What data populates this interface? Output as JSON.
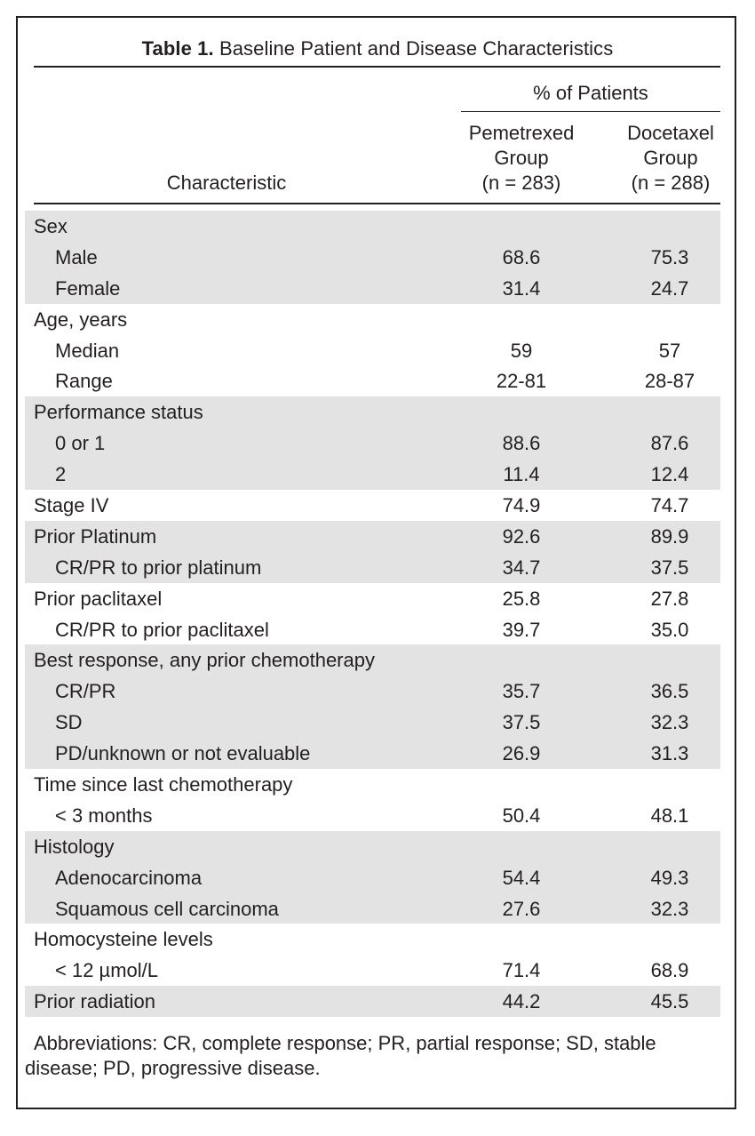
{
  "table": {
    "caption_label": "Table 1.",
    "caption_text": "Baseline Patient and Disease Characteristics",
    "header": {
      "characteristic": "Characteristic",
      "pct_of_patients": "% of Patients",
      "col1": [
        "Pemetrexed",
        "Group",
        "(n = 283)"
      ],
      "col2": [
        "Docetaxel",
        "Group",
        "(n = 288)"
      ]
    },
    "rows": [
      {
        "label": "Sex",
        "v1": "",
        "v2": "",
        "indent": false,
        "shade": true
      },
      {
        "label": "Male",
        "v1": "68.6",
        "v2": "75.3",
        "indent": true,
        "shade": true
      },
      {
        "label": "Female",
        "v1": "31.4",
        "v2": "24.7",
        "indent": true,
        "shade": true
      },
      {
        "label": "Age, years",
        "v1": "",
        "v2": "",
        "indent": false,
        "shade": false
      },
      {
        "label": "Median",
        "v1": "59",
        "v2": "57",
        "indent": true,
        "shade": false
      },
      {
        "label": "Range",
        "v1": "22-81",
        "v2": "28-87",
        "indent": true,
        "shade": false
      },
      {
        "label": "Performance status",
        "v1": "",
        "v2": "",
        "indent": false,
        "shade": true
      },
      {
        "label": "0 or 1",
        "v1": "88.6",
        "v2": "87.6",
        "indent": true,
        "shade": true
      },
      {
        "label": "2",
        "v1": "11.4",
        "v2": "12.4",
        "indent": true,
        "shade": true
      },
      {
        "label": "Stage IV",
        "v1": "74.9",
        "v2": "74.7",
        "indent": false,
        "shade": false
      },
      {
        "label": "Prior Platinum",
        "v1": "92.6",
        "v2": "89.9",
        "indent": false,
        "shade": true
      },
      {
        "label": "CR/PR to prior platinum",
        "v1": "34.7",
        "v2": "37.5",
        "indent": true,
        "shade": true
      },
      {
        "label": "Prior paclitaxel",
        "v1": "25.8",
        "v2": "27.8",
        "indent": false,
        "shade": false
      },
      {
        "label": "CR/PR to prior paclitaxel",
        "v1": "39.7",
        "v2": "35.0",
        "indent": true,
        "shade": false
      },
      {
        "label": "Best response, any prior chemotherapy",
        "v1": "",
        "v2": "",
        "indent": false,
        "shade": true
      },
      {
        "label": "CR/PR",
        "v1": "35.7",
        "v2": "36.5",
        "indent": true,
        "shade": true
      },
      {
        "label": "SD",
        "v1": "37.5",
        "v2": "32.3",
        "indent": true,
        "shade": true
      },
      {
        "label": "PD/unknown or not evaluable",
        "v1": "26.9",
        "v2": "31.3",
        "indent": true,
        "shade": true
      },
      {
        "label": "Time since last chemotherapy",
        "v1": "",
        "v2": "",
        "indent": false,
        "shade": false
      },
      {
        "label": "< 3 months",
        "v1": "50.4",
        "v2": "48.1",
        "indent": true,
        "shade": false
      },
      {
        "label": "Histology",
        "v1": "",
        "v2": "",
        "indent": false,
        "shade": true
      },
      {
        "label": "Adenocarcinoma",
        "v1": "54.4",
        "v2": "49.3",
        "indent": true,
        "shade": true
      },
      {
        "label": "Squamous cell carcinoma",
        "v1": "27.6",
        "v2": "32.3",
        "indent": true,
        "shade": true
      },
      {
        "label": "Homocysteine levels",
        "v1": "",
        "v2": "",
        "indent": false,
        "shade": false
      },
      {
        "label": "< 12 µmol/L",
        "v1": "71.4",
        "v2": "68.9",
        "indent": true,
        "shade": false
      },
      {
        "label": "Prior radiation",
        "v1": "44.2",
        "v2": "45.5",
        "indent": false,
        "shade": true
      }
    ],
    "footnote": [
      "Abbreviations: CR, complete response; PR, partial response; SD, stable",
      "disease; PD, progressive disease."
    ]
  }
}
